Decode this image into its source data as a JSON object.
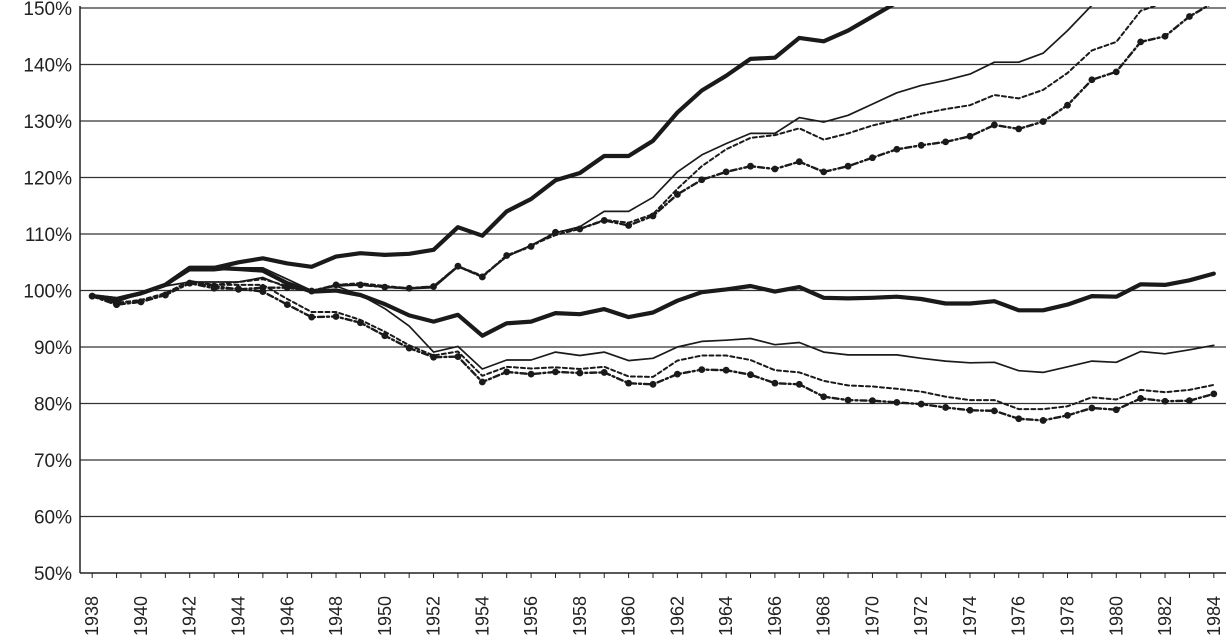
{
  "chart_data": {
    "type": "line",
    "title": "",
    "xlabel": "",
    "ylabel": "",
    "x": [
      1938,
      1939,
      1940,
      1941,
      1942,
      1943,
      1944,
      1945,
      1946,
      1947,
      1948,
      1949,
      1950,
      1951,
      1952,
      1953,
      1954,
      1955,
      1956,
      1957,
      1958,
      1959,
      1960,
      1961,
      1962,
      1963,
      1964,
      1965,
      1966,
      1967,
      1968,
      1969,
      1970,
      1971,
      1972,
      1973,
      1974,
      1975,
      1976,
      1977,
      1978,
      1979,
      1980,
      1981,
      1982,
      1983,
      1984
    ],
    "xlim": [
      1937.5,
      1984.5
    ],
    "ylim": [
      50,
      150
    ],
    "ytick_labels": [
      "50%",
      "60%",
      "70%",
      "80%",
      "90%",
      "100%",
      "110%",
      "120%",
      "130%",
      "140%",
      "150%"
    ],
    "xtick_labels": [
      "1938",
      "1940",
      "1942",
      "1944",
      "1946",
      "1948",
      "1950",
      "1952",
      "1954",
      "1956",
      "1958",
      "1960",
      "1962",
      "1964",
      "1966",
      "1968",
      "1970",
      "1972",
      "1974",
      "1976",
      "1978",
      "1980",
      "1982",
      "1984"
    ],
    "grid": true,
    "legend": "none",
    "series": [
      {
        "name": "upper-thick-solid",
        "style": "thick-solid",
        "values": [
          99,
          98.5,
          99.5,
          101,
          104,
          104,
          105,
          105.7,
          104.8,
          104.2,
          106,
          106.6,
          106.3,
          106.5,
          107.2,
          111.2,
          109.7,
          114,
          116.2,
          119.5,
          120.8,
          123.8,
          123.8,
          126.5,
          131.5,
          135.4,
          138,
          141,
          141.2,
          144.7,
          144.1,
          146,
          148.5,
          151,
          null,
          null,
          null,
          null,
          null,
          null,
          null,
          null,
          null,
          null,
          null,
          null,
          null
        ]
      },
      {
        "name": "upper-thin-solid",
        "style": "thin-solid",
        "values": [
          99,
          98,
          99.5,
          100.8,
          103.5,
          103.5,
          104,
          104,
          102,
          100,
          100.8,
          101,
          100.6,
          100.3,
          100.5,
          104.2,
          102.5,
          106,
          108,
          110.2,
          111.3,
          114,
          114,
          116.5,
          121,
          124,
          126,
          127.8,
          127.8,
          130.6,
          129.8,
          131,
          133,
          135,
          136.3,
          137.2,
          138.3,
          140.4,
          140.4,
          142,
          146,
          150.5,
          null,
          null,
          null,
          null,
          null
        ]
      },
      {
        "name": "upper-dashed",
        "style": "dashed",
        "values": [
          99,
          97.8,
          98.3,
          99.5,
          101.7,
          101,
          101.5,
          102,
          100.8,
          99.8,
          101,
          101.3,
          100.8,
          100.4,
          100.7,
          104.3,
          102.6,
          106,
          108,
          109.8,
          110.9,
          112.5,
          112,
          113.5,
          118,
          122,
          125,
          127,
          127.5,
          128.7,
          126.7,
          127.8,
          129.2,
          130.2,
          131.3,
          132.1,
          132.8,
          134.6,
          134,
          135.5,
          138.5,
          142.5,
          144,
          149.5,
          151,
          151,
          151
        ]
      },
      {
        "name": "upper-dash-dot-markers",
        "style": "dash-dot-marker",
        "values": [
          99,
          97.5,
          98,
          99.2,
          101.3,
          100.8,
          100.2,
          100.5,
          100.5,
          99.9,
          101,
          101,
          100.6,
          100.4,
          100.7,
          104.3,
          102.4,
          106.2,
          107.8,
          110.3,
          110.9,
          112.4,
          111.5,
          113.2,
          117,
          119.6,
          121,
          122,
          121.5,
          122.8,
          121,
          122,
          123.5,
          125,
          125.7,
          126.3,
          127.3,
          129.3,
          128.6,
          129.9,
          132.8,
          137.3,
          138.7,
          144,
          145,
          148.5,
          151
        ]
      },
      {
        "name": "lower-thick-solid",
        "style": "thick-solid",
        "values": [
          99,
          98.5,
          99.5,
          101,
          104,
          104,
          103.8,
          103.5,
          101.3,
          99.8,
          100,
          99.2,
          97.6,
          95.6,
          94.5,
          95.7,
          92,
          94.2,
          94.5,
          96,
          95.8,
          96.7,
          95.3,
          96.1,
          98.2,
          99.7,
          100.2,
          100.8,
          99.8,
          100.6,
          98.7,
          98.6,
          98.7,
          98.9,
          98.5,
          97.7,
          97.7,
          98.1,
          96.5,
          96.5,
          97.5,
          99,
          98.9,
          101.1,
          101,
          101.8,
          103
        ]
      },
      {
        "name": "lower-thin-solid",
        "style": "thin-solid",
        "values": [
          99,
          98,
          99.5,
          100.8,
          101.5,
          101.5,
          101.5,
          102.3,
          100.5,
          100,
          100.8,
          99.2,
          96.8,
          93.7,
          89.1,
          90.1,
          86.1,
          87.7,
          87.7,
          89.1,
          88.5,
          89.1,
          87.6,
          88,
          90,
          91,
          91.2,
          91.5,
          90.4,
          90.8,
          89.1,
          88.6,
          88.6,
          88.6,
          88,
          87.5,
          87.2,
          87.3,
          85.8,
          85.5,
          86.5,
          87.5,
          87.3,
          89.2,
          88.8,
          89.5,
          90.3
        ]
      },
      {
        "name": "lower-dashed",
        "style": "dashed",
        "values": [
          99,
          97.8,
          98.3,
          99.5,
          101.5,
          101,
          101,
          101,
          98.5,
          96.2,
          96.2,
          94.8,
          92.7,
          90.3,
          88.5,
          89.2,
          84.9,
          86.5,
          86.2,
          86.4,
          86.1,
          86.5,
          84.8,
          84.7,
          87.6,
          88.5,
          88.5,
          87.7,
          85.9,
          85.5,
          84,
          83.2,
          83,
          82.6,
          82.1,
          81.2,
          80.6,
          80.6,
          79,
          79,
          79.5,
          81.1,
          80.7,
          82.4,
          82,
          82.4,
          83.3
        ]
      },
      {
        "name": "lower-dash-dot-markers",
        "style": "dash-dot-marker",
        "values": [
          99,
          97.5,
          98,
          99.2,
          101.3,
          100.4,
          100.3,
          99.8,
          97.5,
          95.3,
          95.4,
          94.3,
          92,
          89.8,
          88.2,
          88.3,
          83.8,
          85.6,
          85.2,
          85.6,
          85.4,
          85.5,
          83.6,
          83.4,
          85.2,
          86,
          85.9,
          85.1,
          83.6,
          83.4,
          81.2,
          80.6,
          80.5,
          80.2,
          79.9,
          79.3,
          78.8,
          78.7,
          77.3,
          77,
          77.9,
          79.2,
          78.9,
          80.9,
          80.4,
          80.5,
          81.7
        ]
      }
    ]
  }
}
